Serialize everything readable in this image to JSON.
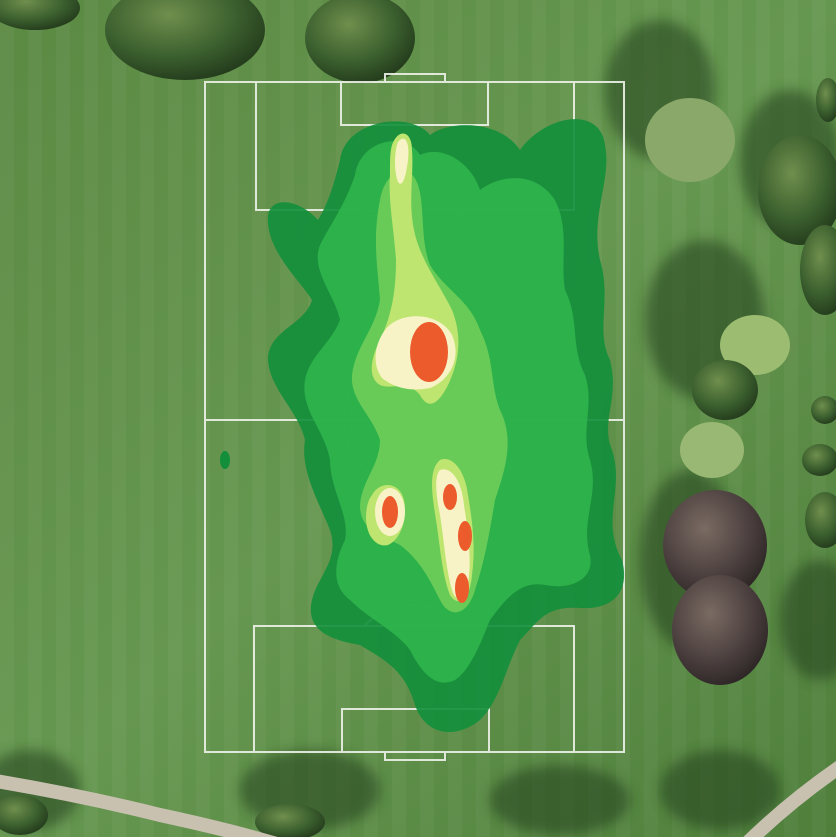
{
  "scene": {
    "type": "aerial-photo-with-heatmap-overlay",
    "subject": "football pitch",
    "heatmap_hotspots": [
      {
        "name": "hotspot-midfield",
        "level": "max"
      },
      {
        "name": "hotspot-left-low",
        "level": "max"
      },
      {
        "name": "hotspot-right-1",
        "level": "max"
      },
      {
        "name": "hotspot-right-2",
        "level": "max"
      },
      {
        "name": "hotspot-right-3",
        "level": "max"
      }
    ]
  },
  "colors": {
    "grass": "#5d8a45",
    "grass_dark": "#3f6a2f",
    "lines": "#f2f5ef",
    "heat_low": "#138f3c",
    "heat_mid": "#2fb54c",
    "heat_high": "#a9dc63",
    "heat_peak": "#fbf6c8",
    "heat_max": "#ec5b2b",
    "trees": "#2e4f27",
    "path": "#c9c3b4"
  }
}
